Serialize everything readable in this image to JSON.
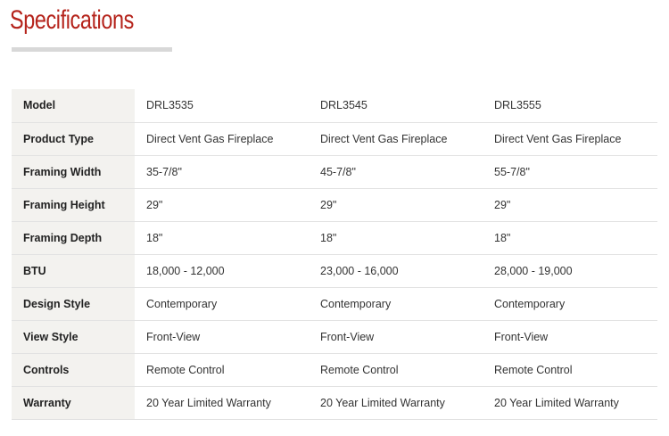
{
  "colors": {
    "title": "#b5231b",
    "label_background": "#f3f2ef",
    "rule": "#d8d8d8"
  },
  "title": "Specifications",
  "rows": [
    {
      "label": "Model",
      "values": [
        "DRL3535",
        "DRL3545",
        "DRL3555"
      ]
    },
    {
      "label": "Product Type",
      "values": [
        "Direct Vent Gas Fireplace",
        "Direct Vent Gas Fireplace",
        "Direct Vent Gas Fireplace"
      ]
    },
    {
      "label": "Framing Width",
      "values": [
        "35-7/8\"",
        "45-7/8\"",
        "55-7/8\""
      ]
    },
    {
      "label": "Framing Height",
      "values": [
        "29\"",
        "29\"",
        "29\""
      ]
    },
    {
      "label": "Framing Depth",
      "values": [
        "18\"",
        "18\"",
        "18\""
      ]
    },
    {
      "label": "BTU",
      "values": [
        "18,000 - 12,000",
        "23,000 - 16,000",
        "28,000 - 19,000"
      ]
    },
    {
      "label": "Design Style",
      "values": [
        "Contemporary",
        "Contemporary",
        "Contemporary"
      ]
    },
    {
      "label": "View Style",
      "values": [
        "Front-View",
        "Front-View",
        "Front-View"
      ]
    },
    {
      "label": "Controls",
      "values": [
        "Remote Control",
        "Remote Control",
        "Remote Control"
      ]
    },
    {
      "label": "Warranty",
      "values": [
        "20 Year Limited Warranty",
        "20 Year Limited Warranty",
        "20 Year Limited Warranty"
      ]
    }
  ]
}
